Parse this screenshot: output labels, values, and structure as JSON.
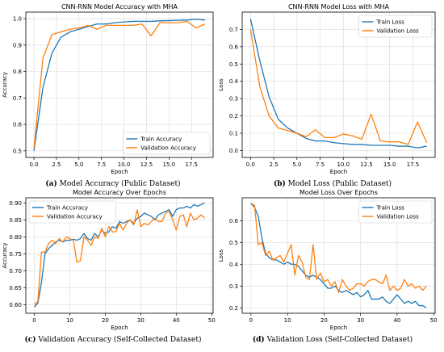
{
  "colors": {
    "train": "#1f77b4",
    "validation": "#ff7f0e",
    "grid": "#d9d9d9",
    "axis": "#000000"
  },
  "chart_data": [
    {
      "type": "line",
      "title": "CNN-RNN Model Accuracy with MHA",
      "xlabel": "Epoch",
      "ylabel": "Accuracy",
      "xlim": [
        -0.9,
        19.9
      ],
      "ylim": [
        0.475,
        1.025
      ],
      "xticks": [
        0,
        2.5,
        5,
        7.5,
        10,
        12.5,
        15,
        17.5
      ],
      "xtick_labels": [
        "0.0",
        "2.5",
        "5.0",
        "7.5",
        "10.0",
        "12.5",
        "15.0",
        "17.5"
      ],
      "yticks": [
        0.5,
        0.6,
        0.7,
        0.8,
        0.9,
        1.0
      ],
      "ytick_labels": [
        "0.5",
        "0.6",
        "0.7",
        "0.8",
        "0.9",
        "1.0"
      ],
      "grid": true,
      "legend_position": "bottom-right",
      "legend_order": [
        0,
        1
      ],
      "caption": {
        "label": "(a)",
        "text": "Model Accuracy (Public Dataset)"
      },
      "series": [
        {
          "name": "Train Accuracy",
          "x": [
            0,
            1,
            2,
            3,
            4,
            5,
            6,
            7,
            8,
            9,
            10,
            11,
            12,
            13,
            14,
            15,
            16,
            17,
            18,
            19
          ],
          "values": [
            0.5,
            0.74,
            0.87,
            0.93,
            0.95,
            0.96,
            0.97,
            0.98,
            0.98,
            0.985,
            0.988,
            0.99,
            0.99,
            0.99,
            0.992,
            0.993,
            0.994,
            0.995,
            0.998,
            0.995
          ]
        },
        {
          "name": "Validation Accuracy",
          "x": [
            0,
            1,
            2,
            3,
            4,
            5,
            6,
            7,
            8,
            9,
            10,
            11,
            12,
            13,
            14,
            15,
            16,
            17,
            18,
            19
          ],
          "values": [
            0.51,
            0.85,
            0.94,
            0.95,
            0.96,
            0.965,
            0.975,
            0.96,
            0.975,
            0.975,
            0.975,
            0.975,
            0.98,
            0.935,
            0.985,
            0.985,
            0.985,
            0.99,
            0.965,
            0.98
          ]
        }
      ]
    },
    {
      "type": "line",
      "title": "CNN-RNN Model Loss with MHA",
      "xlabel": "Epoch",
      "ylabel": "Loss",
      "xlim": [
        -0.9,
        19.9
      ],
      "ylim": [
        -0.04,
        0.8
      ],
      "xticks": [
        0,
        2.5,
        5,
        7.5,
        10,
        12.5,
        15,
        17.5
      ],
      "xtick_labels": [
        "0.0",
        "2.5",
        "5.0",
        "7.5",
        "10.0",
        "12.5",
        "15.0",
        "17.5"
      ],
      "yticks": [
        0,
        0.1,
        0.2,
        0.3,
        0.4,
        0.5,
        0.6,
        0.7
      ],
      "ytick_labels": [
        "0.0",
        "0.1",
        "0.2",
        "0.3",
        "0.4",
        "0.5",
        "0.6",
        "0.7"
      ],
      "grid": true,
      "legend_position": "top-right",
      "legend_order": [
        0,
        1
      ],
      "caption": {
        "label": "(b)",
        "text": "Model Loss (Public Dataset)"
      },
      "series": [
        {
          "name": "Train Loss",
          "x": [
            0,
            1,
            2,
            3,
            4,
            5,
            6,
            7,
            8,
            9,
            10,
            11,
            12,
            13,
            14,
            15,
            16,
            17,
            18,
            19
          ],
          "values": [
            0.76,
            0.52,
            0.31,
            0.18,
            0.13,
            0.1,
            0.07,
            0.055,
            0.055,
            0.045,
            0.04,
            0.035,
            0.035,
            0.03,
            0.03,
            0.03,
            0.025,
            0.025,
            0.015,
            0.025
          ]
        },
        {
          "name": "Validation Loss",
          "x": [
            0,
            1,
            2,
            3,
            4,
            5,
            6,
            7,
            8,
            9,
            10,
            11,
            12,
            13,
            14,
            15,
            16,
            17,
            18,
            19
          ],
          "values": [
            0.7,
            0.37,
            0.2,
            0.13,
            0.115,
            0.1,
            0.08,
            0.12,
            0.075,
            0.075,
            0.095,
            0.085,
            0.065,
            0.21,
            0.055,
            0.05,
            0.05,
            0.035,
            0.165,
            0.045
          ]
        }
      ]
    },
    {
      "type": "line",
      "title": "Model Accuracy Over Epochs",
      "xlabel": "Epoch",
      "ylabel": "Accuracy",
      "xlim": [
        -2.4,
        50.4
      ],
      "ylim": [
        0.575,
        0.915
      ],
      "xticks": [
        0,
        10,
        20,
        30,
        40,
        50
      ],
      "xtick_labels": [
        "0",
        "10",
        "20",
        "30",
        "40",
        "50"
      ],
      "yticks": [
        0.6,
        0.65,
        0.7,
        0.75,
        0.8,
        0.85,
        0.9
      ],
      "ytick_labels": [
        "0.60",
        "0.65",
        "0.70",
        "0.75",
        "0.80",
        "0.85",
        "0.90"
      ],
      "grid": true,
      "legend_position": "top-left",
      "legend_order": [
        0,
        1
      ],
      "caption": {
        "label": "(c)",
        "text": "Validation Accuracy (Self-Collected Dataset)"
      },
      "series": [
        {
          "name": "Train Accuracy",
          "x": [
            0,
            1,
            2,
            3,
            4,
            5,
            6,
            7,
            8,
            9,
            10,
            11,
            12,
            13,
            14,
            15,
            16,
            17,
            18,
            19,
            20,
            21,
            22,
            23,
            24,
            25,
            26,
            27,
            28,
            29,
            30,
            31,
            32,
            33,
            34,
            35,
            36,
            37,
            38,
            39,
            40,
            41,
            42,
            43,
            44,
            45,
            46,
            47,
            48
          ],
          "values": [
            0.593,
            0.605,
            0.665,
            0.75,
            0.765,
            0.775,
            0.785,
            0.79,
            0.785,
            0.79,
            0.79,
            0.793,
            0.79,
            0.795,
            0.81,
            0.795,
            0.79,
            0.81,
            0.8,
            0.82,
            0.81,
            0.815,
            0.83,
            0.825,
            0.845,
            0.84,
            0.845,
            0.85,
            0.84,
            0.855,
            0.86,
            0.87,
            0.865,
            0.86,
            0.85,
            0.865,
            0.87,
            0.875,
            0.88,
            0.86,
            0.88,
            0.885,
            0.885,
            0.89,
            0.885,
            0.895,
            0.89,
            0.895,
            0.9
          ]
        },
        {
          "name": "Validation Accuracy",
          "x": [
            0,
            1,
            2,
            3,
            4,
            5,
            6,
            7,
            8,
            9,
            10,
            11,
            12,
            13,
            14,
            15,
            16,
            17,
            18,
            19,
            20,
            21,
            22,
            23,
            24,
            25,
            26,
            27,
            28,
            29,
            30,
            31,
            32,
            33,
            34,
            35,
            36,
            37,
            38,
            39,
            40,
            41,
            42,
            43,
            44,
            45,
            46,
            47,
            48
          ],
          "values": [
            0.6,
            0.61,
            0.755,
            0.755,
            0.78,
            0.79,
            0.78,
            0.795,
            0.785,
            0.8,
            0.795,
            0.79,
            0.725,
            0.73,
            0.8,
            0.79,
            0.775,
            0.8,
            0.795,
            0.825,
            0.8,
            0.83,
            0.815,
            0.815,
            0.84,
            0.82,
            0.84,
            0.85,
            0.835,
            0.88,
            0.83,
            0.84,
            0.835,
            0.845,
            0.855,
            0.845,
            0.845,
            0.87,
            0.875,
            0.85,
            0.82,
            0.86,
            0.865,
            0.83,
            0.87,
            0.85,
            0.855,
            0.865,
            0.855
          ]
        }
      ]
    },
    {
      "type": "line",
      "title": "Model Loss Over Epochs",
      "xlabel": "Epoch",
      "ylabel": "Loss",
      "xlim": [
        -2.4,
        50.4
      ],
      "ylim": [
        0.175,
        0.705
      ],
      "xticks": [
        0,
        10,
        20,
        30,
        40,
        50
      ],
      "xtick_labels": [
        "0",
        "10",
        "20",
        "30",
        "40",
        "50"
      ],
      "yticks": [
        0.2,
        0.3,
        0.4,
        0.5,
        0.6
      ],
      "ytick_labels": [
        "0.2",
        "0.3",
        "0.4",
        "0.5",
        "0.6"
      ],
      "grid": true,
      "legend_position": "top-right",
      "legend_order": [
        0,
        1
      ],
      "caption": {
        "label": "(d)",
        "text": "Validation Loss (Self-Collected Dataset)"
      },
      "series": [
        {
          "name": "Train Loss",
          "x": [
            0,
            1,
            2,
            3,
            4,
            5,
            6,
            7,
            8,
            9,
            10,
            11,
            12,
            13,
            14,
            15,
            16,
            17,
            18,
            19,
            20,
            21,
            22,
            23,
            24,
            25,
            26,
            27,
            28,
            29,
            30,
            31,
            32,
            33,
            34,
            35,
            36,
            37,
            38,
            39,
            40,
            41,
            42,
            43,
            44,
            45,
            46,
            47,
            48
          ],
          "values": [
            0.68,
            0.66,
            0.62,
            0.52,
            0.45,
            0.43,
            0.42,
            0.42,
            0.41,
            0.4,
            0.41,
            0.4,
            0.4,
            0.39,
            0.37,
            0.35,
            0.34,
            0.35,
            0.34,
            0.33,
            0.31,
            0.29,
            0.29,
            0.3,
            0.28,
            0.27,
            0.28,
            0.27,
            0.26,
            0.27,
            0.25,
            0.26,
            0.28,
            0.24,
            0.24,
            0.24,
            0.25,
            0.23,
            0.22,
            0.24,
            0.26,
            0.24,
            0.22,
            0.23,
            0.22,
            0.23,
            0.21,
            0.21,
            0.2
          ]
        },
        {
          "name": "Validation Loss",
          "x": [
            0,
            1,
            2,
            3,
            4,
            5,
            6,
            7,
            8,
            9,
            10,
            11,
            12,
            13,
            14,
            15,
            16,
            17,
            18,
            19,
            20,
            21,
            22,
            23,
            24,
            25,
            26,
            27,
            28,
            29,
            30,
            31,
            32,
            33,
            34,
            35,
            36,
            37,
            38,
            39,
            40,
            41,
            42,
            43,
            44,
            45,
            46,
            47,
            48
          ],
          "values": [
            0.68,
            0.67,
            0.49,
            0.5,
            0.44,
            0.46,
            0.42,
            0.43,
            0.44,
            0.41,
            0.45,
            0.49,
            0.35,
            0.44,
            0.41,
            0.34,
            0.33,
            0.49,
            0.33,
            0.36,
            0.32,
            0.33,
            0.3,
            0.32,
            0.27,
            0.33,
            0.3,
            0.28,
            0.29,
            0.31,
            0.31,
            0.3,
            0.32,
            0.33,
            0.33,
            0.32,
            0.31,
            0.35,
            0.28,
            0.3,
            0.28,
            0.29,
            0.33,
            0.3,
            0.31,
            0.29,
            0.3,
            0.28,
            0.3
          ]
        }
      ]
    }
  ]
}
